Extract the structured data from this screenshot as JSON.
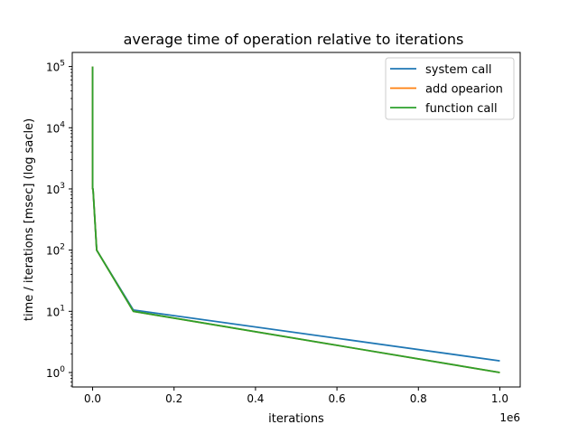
{
  "chart_data": {
    "type": "line",
    "title": "average time of operation relative to iterations",
    "xlabel": "iterations",
    "ylabel": "time / iterations [msec]  (log sacle)",
    "x_offset_label": "1e6",
    "x_scale": "linear",
    "y_scale": "log",
    "xlim": [
      -50000,
      1050000
    ],
    "ylim": [
      0.58,
      170000
    ],
    "x_ticks": [
      0,
      200000,
      400000,
      600000,
      800000,
      1000000
    ],
    "x_tick_labels": [
      "0.0",
      "0.2",
      "0.4",
      "0.6",
      "0.8",
      "1.0"
    ],
    "y_ticks": [
      1,
      10,
      100,
      1000,
      10000,
      100000
    ],
    "y_tick_labels": [
      {
        "base": "10",
        "exp": "0"
      },
      {
        "base": "10",
        "exp": "1"
      },
      {
        "base": "10",
        "exp": "2"
      },
      {
        "base": "10",
        "exp": "3"
      },
      {
        "base": "10",
        "exp": "4"
      },
      {
        "base": "10",
        "exp": "5"
      }
    ],
    "grid": false,
    "legend_position": "top-right",
    "x": [
      1,
      10,
      100,
      1000,
      10000,
      100000,
      1000000
    ],
    "series": [
      {
        "name": "system call",
        "color": "#1f77b4",
        "values": [
          100000,
          10000,
          1000,
          1000,
          100,
          10.5,
          1.55
        ]
      },
      {
        "name": "add opearion",
        "color": "#ff7f0e",
        "values": [
          100000,
          10000,
          1000,
          1000,
          100,
          10,
          1.0
        ]
      },
      {
        "name": "function call",
        "color": "#2ca02c",
        "values": [
          100000,
          10000,
          1000,
          1000,
          100,
          10,
          1.0
        ]
      }
    ]
  }
}
